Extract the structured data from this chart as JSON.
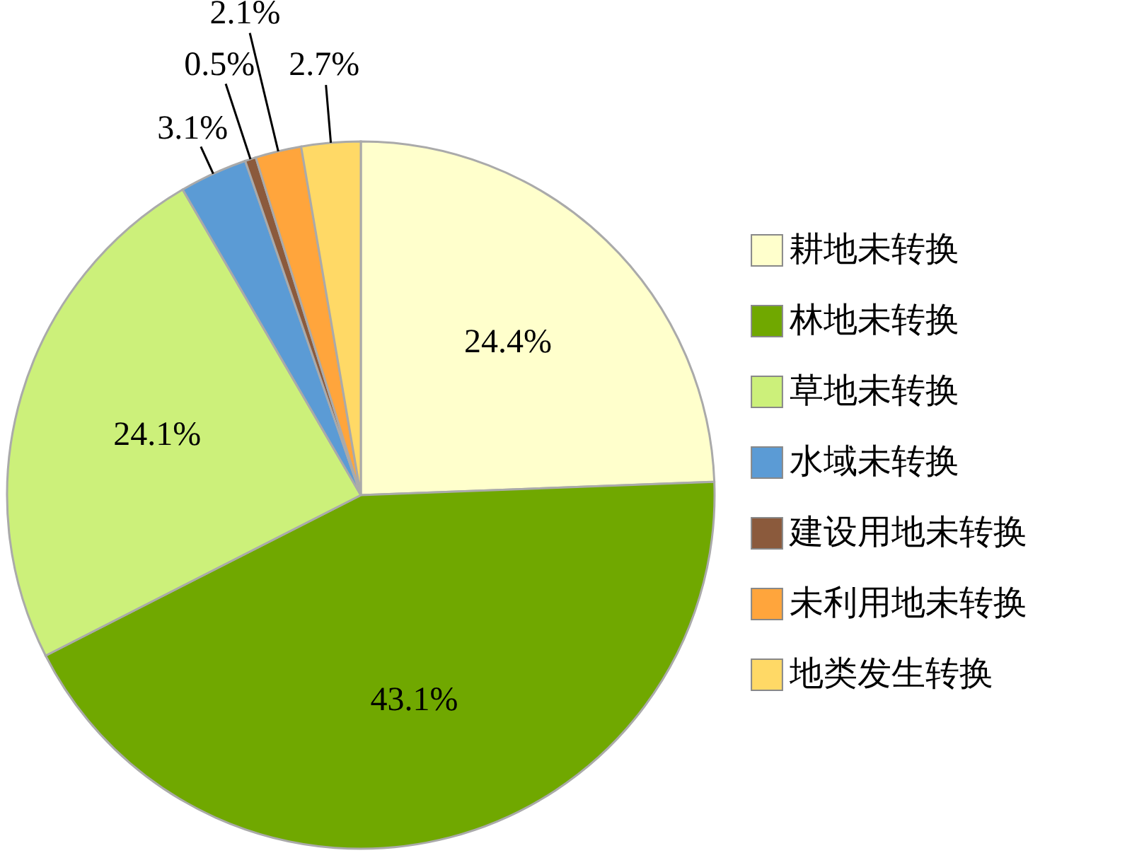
{
  "chart_data": {
    "type": "pie",
    "categories": [
      "耕地未转换",
      "林地未转换",
      "草地未转换",
      "水域未转换",
      "建设用地未转换",
      "未利用地未转换",
      "地类发生转换"
    ],
    "values": [
      24.4,
      43.1,
      24.1,
      3.1,
      0.5,
      2.1,
      2.7
    ],
    "colors": [
      "#ffffcc",
      "#70a800",
      "#ccf07a",
      "#5b9bd5",
      "#8b5a3c",
      "#ffa53c",
      "#ffd966"
    ],
    "value_labels": [
      "24.4%",
      "43.1%",
      "24.1%",
      "3.1%",
      "0.5%",
      "2.1%",
      "2.7%"
    ],
    "legend": "right"
  }
}
